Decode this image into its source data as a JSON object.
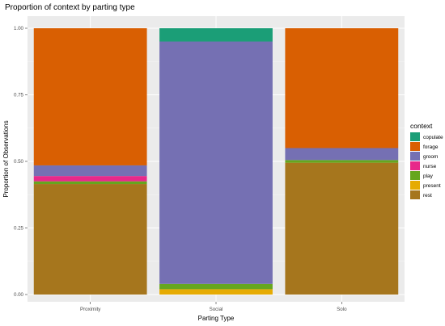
{
  "chart_data": {
    "type": "bar",
    "stacked": true,
    "title": "Proportion of context by parting type",
    "xlabel": "Parting Type",
    "ylabel": "Proportion of Observations",
    "ylim": [
      0,
      1
    ],
    "y_ticks": [
      "0.00",
      "0.25",
      "0.50",
      "0.75",
      "1.00"
    ],
    "categories": [
      "Proximity",
      "Social",
      "Solo"
    ],
    "legend_title": "context",
    "legend_position": "right",
    "grid": true,
    "series": [
      {
        "name": "copulate",
        "color": "#1b9e77",
        "values": [
          0,
          0.05,
          0
        ]
      },
      {
        "name": "forage",
        "color": "#d95f02",
        "values": [
          0.515,
          0,
          0.45
        ]
      },
      {
        "name": "groom",
        "color": "#7570b3",
        "values": [
          0.04,
          0.91,
          0.045
        ]
      },
      {
        "name": "nurse",
        "color": "#e7298a",
        "values": [
          0.02,
          0,
          0
        ]
      },
      {
        "name": "play",
        "color": "#66a61e",
        "values": [
          0.01,
          0.02,
          0.01
        ]
      },
      {
        "name": "present",
        "color": "#e6ab02",
        "values": [
          0,
          0.02,
          0
        ]
      },
      {
        "name": "rest",
        "color": "#a6761d",
        "values": [
          0.415,
          0,
          0.495
        ]
      }
    ]
  }
}
